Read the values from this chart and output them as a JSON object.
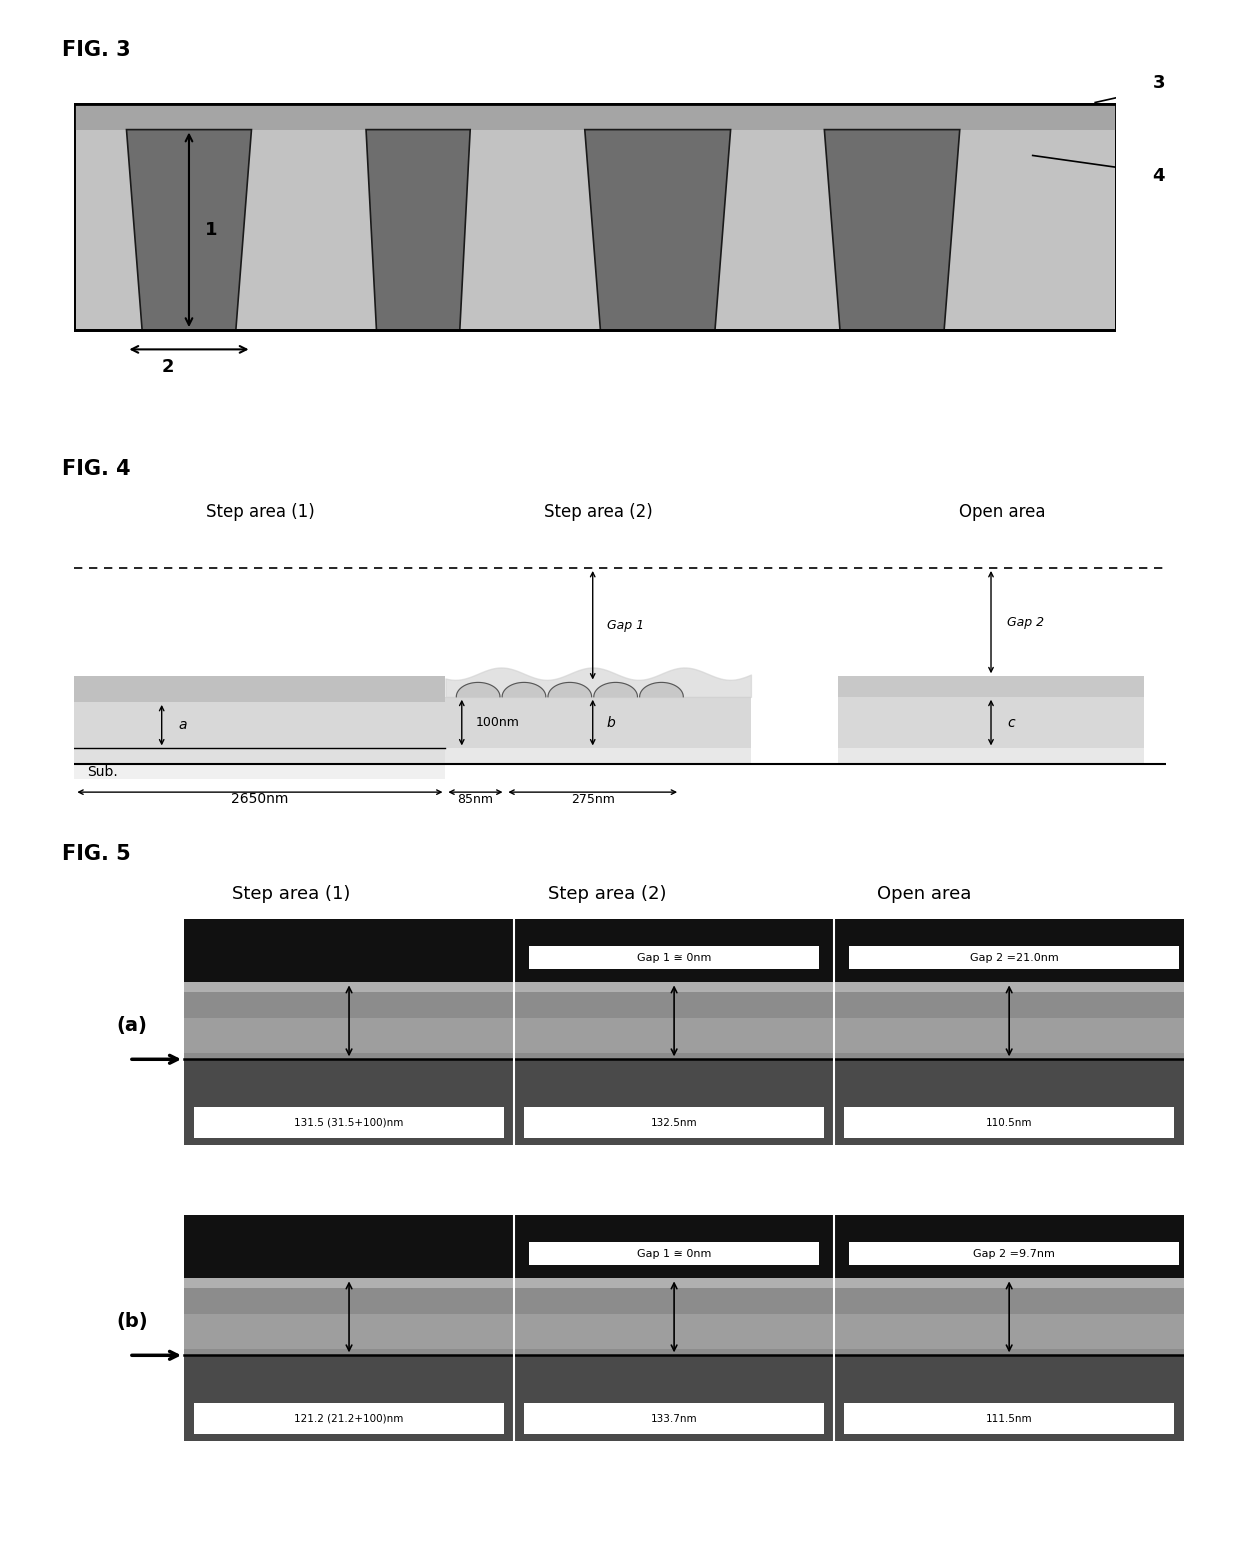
{
  "fig3_label": "FIG. 3",
  "fig4_label": "FIG. 4",
  "fig5_label": "FIG. 5",
  "background_color": "#ffffff",
  "fig3": {
    "substrate_color": "#c0c0c0",
    "top_layer_color": "#a8a8a8",
    "trench_color": "#707070",
    "border_color": "#000000",
    "label1": "1",
    "label2": "2",
    "label3": "3",
    "label4": "4"
  },
  "fig4": {
    "step_area1_label": "Step area (1)",
    "step_area2_label": "Step area (2)",
    "open_area_label": "Open area",
    "sub_label": "Sub.",
    "dim_2650": "2650nm",
    "dim_85": "85nm",
    "dim_275": "275nm",
    "dim_100": "100nm",
    "gap1_label": "Gap 1",
    "gap2_label": "Gap 2",
    "label_a": "a",
    "label_b": "b",
    "label_c": "c"
  },
  "fig5": {
    "step_area1_label": "Step area (1)",
    "step_area2_label": "Step area (2)",
    "open_area_label": "Open area",
    "panel_a_label": "(a)",
    "panel_b_label": "(b)",
    "gap1_a": "Gap 1 ≅ 0nm",
    "gap2_a": "Gap 2 =21.0nm",
    "gap1_b": "Gap 1 ≅ 0nm",
    "gap2_b": "Gap 2 =9.7nm",
    "meas_a1": "131.5 (31.5+100)nm",
    "meas_a2": "132.5nm",
    "meas_a3": "110.5nm",
    "meas_b1": "121.2 (21.2+100)nm",
    "meas_b2": "133.7nm",
    "meas_b3": "111.5nm"
  }
}
